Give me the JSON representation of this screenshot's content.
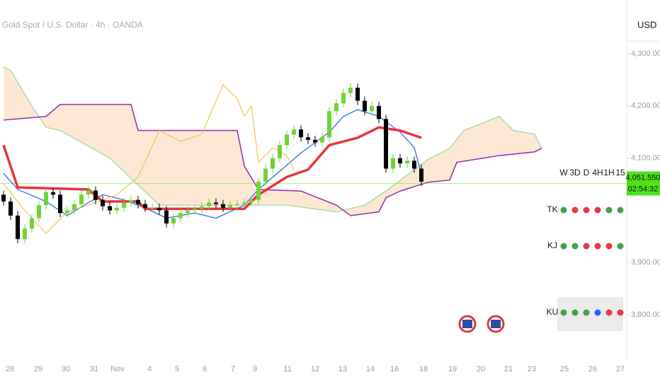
{
  "chart_data": {
    "type": "candlestick",
    "title": "Gold Spot / U.S. Dollar · 4h · OANDA",
    "currency": "USD",
    "open": [
      4030,
      4017,
      3990,
      3945,
      3965,
      3985,
      4010,
      4035,
      4030,
      3995,
      4000,
      4012,
      4030,
      4038,
      4020,
      4008,
      4000,
      4005,
      4015,
      4020,
      4012,
      4005,
      4005,
      4000,
      3975,
      3985,
      3995,
      4000,
      4003,
      4008,
      4015,
      4012,
      4005,
      4010,
      4012,
      4015,
      4020,
      4055,
      4080,
      4100,
      4125,
      4145,
      4155,
      4140,
      4135,
      4130,
      4140,
      4190,
      4205,
      4225,
      4235,
      4210,
      4190,
      4200,
      4175,
      4080,
      4100,
      4090,
      4095,
      4080
    ],
    "high": [
      4038,
      4025,
      3998,
      3973,
      3993,
      4018,
      4043,
      4043,
      4038,
      4008,
      4020,
      4038,
      4046,
      4046,
      4028,
      4016,
      4013,
      4023,
      4028,
      4028,
      4020,
      4013,
      4013,
      4008,
      3993,
      4003,
      4008,
      4011,
      4016,
      4023,
      4023,
      4020,
      4018,
      4020,
      4023,
      4028,
      4063,
      4088,
      4108,
      4133,
      4153,
      4163,
      4163,
      4148,
      4143,
      4148,
      4198,
      4213,
      4233,
      4243,
      4243,
      4218,
      4208,
      4208,
      4183,
      4108,
      4108,
      4103,
      4103,
      4088
    ],
    "low": [
      4009,
      3982,
      3937,
      3937,
      3957,
      3977,
      4002,
      4022,
      3987,
      3987,
      3992,
      4004,
      4022,
      4012,
      4000,
      3992,
      3992,
      3997,
      4007,
      4004,
      3997,
      3997,
      3992,
      3967,
      3967,
      3977,
      3987,
      3992,
      3995,
      4000,
      4004,
      3997,
      3997,
      4002,
      4004,
      4007,
      4012,
      4047,
      4072,
      4092,
      4117,
      4137,
      4132,
      4127,
      4122,
      4122,
      4132,
      4182,
      4197,
      4217,
      4202,
      4182,
      4182,
      4167,
      4072,
      4072,
      4082,
      4082,
      4072,
      4047
    ],
    "close": [
      4017,
      3990,
      3945,
      3965,
      3985,
      4010,
      4035,
      4030,
      3995,
      4000,
      4012,
      4030,
      4038,
      4020,
      4008,
      4000,
      4005,
      4015,
      4020,
      4012,
      4005,
      4005,
      4000,
      3975,
      3985,
      3995,
      4000,
      4003,
      4008,
      4015,
      4012,
      4005,
      4010,
      4012,
      4015,
      4020,
      4055,
      4080,
      4100,
      4125,
      4145,
      4155,
      4140,
      4135,
      4130,
      4140,
      4190,
      4205,
      4225,
      4235,
      4210,
      4190,
      4200,
      4175,
      4080,
      4100,
      4090,
      4095,
      4080,
      4055
    ],
    "up_color": "#6fd435",
    "down_color": "#000000",
    "lines": [
      {
        "color": "#2f6fe0",
        "width": 1.3,
        "x": [
          0,
          2,
          6,
          9,
          12,
          14,
          17,
          20,
          23,
          27,
          30,
          34,
          36,
          39,
          42,
          46,
          48,
          50,
          53,
          56,
          58,
          59
        ],
        "values": [
          4071,
          4040,
          4017,
          3990,
          4015,
          4030,
          4020,
          4005,
          3985,
          3995,
          3985,
          4010,
          4040,
          4075,
          4110,
          4150,
          4180,
          4193,
          4180,
          4150,
          4120,
          4071
        ]
      },
      {
        "color": "#e8343f",
        "width": 3.5,
        "x": [
          0,
          2,
          12,
          14,
          19,
          20,
          34,
          36,
          40,
          43,
          46,
          50,
          53,
          56,
          59
        ],
        "values": [
          4125,
          4044,
          4040,
          4017,
          4017,
          4003,
          4003,
          4030,
          4064,
          4078,
          4125,
          4139,
          4159,
          4153,
          4139
        ]
      },
      {
        "color": "#f5b731",
        "width": 1,
        "x": [
          0,
          3,
          6,
          9,
          12,
          16,
          19,
          22,
          25,
          28,
          31,
          33,
          34,
          35,
          36,
          38,
          40,
          41
        ],
        "values": [
          4051,
          4000,
          3956,
          3997,
          4010,
          4030,
          4064,
          4153,
          4132,
          4146,
          4241,
          4214,
          4180,
          4200,
          4092,
          4120,
          4105,
          4078
        ]
      }
    ],
    "cloud": {
      "fill": "#fde8d4",
      "span_a": {
        "color": "#9fd39a",
        "x": [
          0,
          1,
          4,
          6,
          8,
          15,
          22,
          40,
          47,
          51,
          54,
          58,
          60,
          63,
          65,
          70,
          72,
          75,
          76
        ],
        "values": [
          4275,
          4268,
          4200,
          4159,
          4153,
          4100,
          4010,
          4010,
          3997,
          4010,
          4037,
          4078,
          4098,
          4119,
          4153,
          4180,
          4153,
          4146,
          4119
        ]
      },
      "span_b": {
        "color": "#8e2ea8",
        "x": [
          0,
          6,
          8,
          18,
          19,
          33,
          34,
          36,
          42,
          47,
          49,
          53,
          54,
          56,
          60,
          63,
          64,
          70,
          75,
          76
        ],
        "values": [
          4173,
          4180,
          4203,
          4203,
          4153,
          4153,
          4085,
          4040,
          4037,
          4010,
          3990,
          3997,
          4024,
          4037,
          4054,
          4058,
          4092,
          4105,
          4112,
          4119
        ]
      }
    },
    "last_price": {
      "value": 4051.55,
      "label": "4,051.550"
    },
    "last_price_color": "#4fe21c",
    "countdown": "02:54:32",
    "ylim": [
      3712,
      4403
    ],
    "yticks": [
      {
        "value": 4300,
        "label": "4,300.000"
      },
      {
        "value": 4200,
        "label": "4,200.000"
      },
      {
        "value": 4100,
        "label": "4,100.000"
      },
      {
        "value": 3900,
        "label": "3,900.000"
      },
      {
        "value": 3800,
        "label": "3,800.000"
      }
    ],
    "xaxis_labels": [
      "28",
      "29",
      "30",
      "31",
      "Nov",
      "4",
      "5",
      "6",
      "7",
      "9",
      "11",
      "12",
      "13",
      "14",
      "16",
      "18",
      "19",
      "20",
      "21",
      "23",
      "25",
      "26",
      "27"
    ]
  },
  "table": {
    "columns": [
      "W",
      "3D",
      "D",
      "4H",
      "1H",
      "15"
    ],
    "rows": [
      {
        "label": "TK",
        "colors": [
          "#43a047",
          "#e53945",
          "#e53945",
          "#e53945",
          "#43a047",
          "#43a047"
        ]
      },
      {
        "label": "KJ",
        "colors": [
          "#43a047",
          "#43a047",
          "#e53945",
          "#e53945",
          "#e53945",
          "#43a047"
        ]
      },
      {
        "label": "KU",
        "colors": [
          "#43a047",
          "#43a047",
          "#43a047",
          "#2962ff",
          "#e53945",
          "#e53945"
        ]
      }
    ]
  }
}
